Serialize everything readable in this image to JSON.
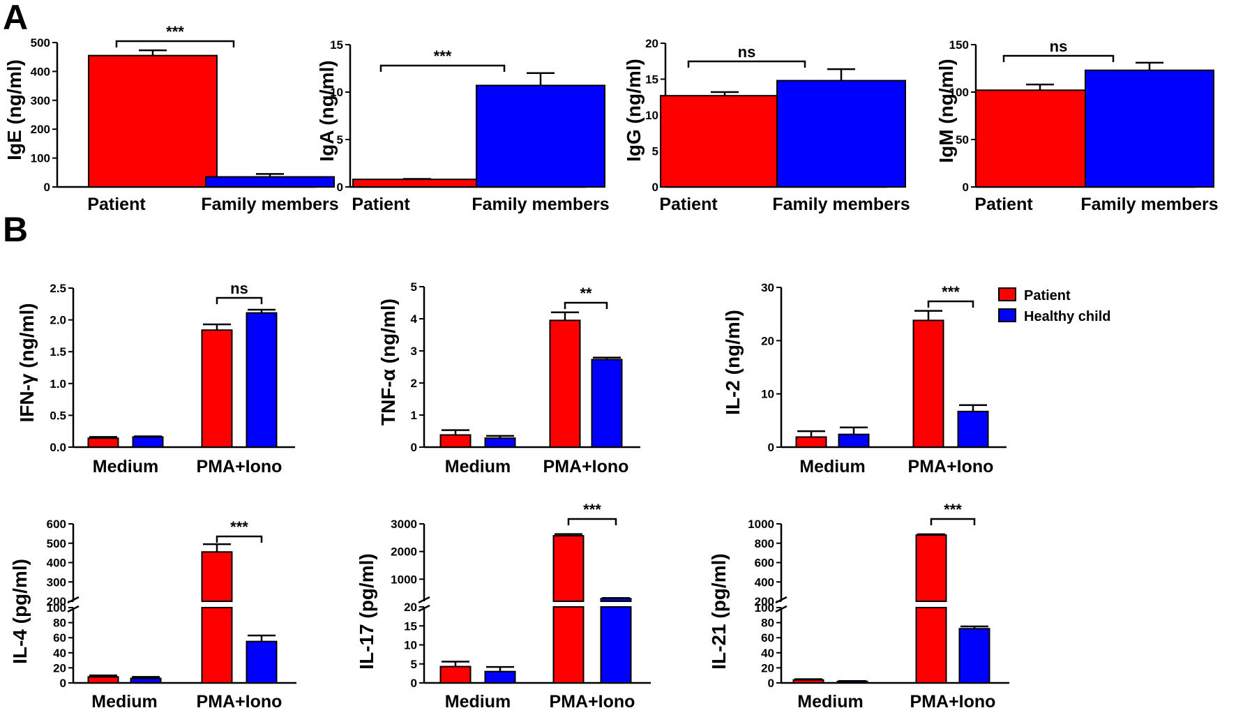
{
  "panel_labels": {
    "a": "A",
    "b": "B"
  },
  "legend": {
    "patient": "Patient",
    "healthy": "Healthy child"
  },
  "colors": {
    "red": "#ff0000",
    "blue": "#0000ff",
    "axis": "#000000"
  },
  "chart_data": [
    {
      "id": "IgE",
      "type": "bar",
      "ylabel": "IgE (ng/ml)",
      "categories": [
        "Patient",
        "Family members"
      ],
      "values": [
        455,
        35
      ],
      "errors": [
        18,
        10
      ],
      "ylim": [
        0,
        500
      ],
      "yticks": [
        0,
        100,
        200,
        300,
        400,
        500
      ],
      "significance": "***",
      "sig_between": [
        0,
        1
      ]
    },
    {
      "id": "IgA",
      "type": "bar",
      "ylabel": "IgA (ng/ml)",
      "categories": [
        "Patient",
        "Family members"
      ],
      "values": [
        0.8,
        10.7
      ],
      "errors": [
        0.05,
        1.3
      ],
      "ylim": [
        0,
        15
      ],
      "yticks": [
        0,
        5,
        10,
        15
      ],
      "significance": "***",
      "sig_between": [
        0,
        1
      ]
    },
    {
      "id": "IgG",
      "type": "bar",
      "ylabel": "IgG (ng/ml)",
      "categories": [
        "Patient",
        "Family members"
      ],
      "values": [
        12.7,
        14.8
      ],
      "errors": [
        0.5,
        1.6
      ],
      "ylim": [
        0,
        20
      ],
      "yticks": [
        0,
        5,
        10,
        15,
        20
      ],
      "significance": "ns",
      "sig_between": [
        0,
        1
      ]
    },
    {
      "id": "IgM",
      "type": "bar",
      "ylabel": "IgM (ng/ml)",
      "categories": [
        "Patient",
        "Family members"
      ],
      "values": [
        102,
        123
      ],
      "errors": [
        6,
        8
      ],
      "ylim": [
        0,
        150
      ],
      "yticks": [
        0,
        50,
        100,
        150
      ],
      "significance": "ns",
      "sig_between": [
        0,
        1
      ]
    },
    {
      "id": "IFN",
      "type": "bar",
      "ylabel": "IFN-γ (ng/ml)",
      "categories": [
        "Medium",
        "PMA+Iono"
      ],
      "series": [
        {
          "name": "Patient",
          "values": [
            0.14,
            1.84
          ],
          "errors": [
            0.02,
            0.09
          ]
        },
        {
          "name": "Healthy child",
          "values": [
            0.16,
            2.11
          ],
          "errors": [
            0.01,
            0.05
          ]
        }
      ],
      "ylim": [
        0,
        2.5
      ],
      "yticks": [
        "0.0",
        "0.5",
        "1.0",
        "1.5",
        "2.0",
        "2.5"
      ],
      "significance": "ns"
    },
    {
      "id": "TNF",
      "type": "bar",
      "ylabel": "TNF-α (ng/ml)",
      "categories": [
        "Medium",
        "PMA+Iono"
      ],
      "series": [
        {
          "name": "Patient",
          "values": [
            0.38,
            3.95
          ],
          "errors": [
            0.15,
            0.25
          ]
        },
        {
          "name": "Healthy child",
          "values": [
            0.28,
            2.73
          ],
          "errors": [
            0.07,
            0.06
          ]
        }
      ],
      "ylim": [
        0,
        5
      ],
      "yticks": [
        0,
        1,
        2,
        3,
        4,
        5
      ],
      "significance": "**"
    },
    {
      "id": "IL2",
      "type": "bar",
      "ylabel": "IL-2 (ng/ml)",
      "categories": [
        "Medium",
        "PMA+Iono"
      ],
      "series": [
        {
          "name": "Patient",
          "values": [
            1.9,
            23.8
          ],
          "errors": [
            1.1,
            1.8
          ]
        },
        {
          "name": "Healthy child",
          "values": [
            2.4,
            6.7
          ],
          "errors": [
            1.3,
            1.2
          ]
        }
      ],
      "ylim": [
        0,
        30
      ],
      "yticks": [
        0,
        10,
        20,
        30
      ],
      "significance": "***"
    },
    {
      "id": "IL4",
      "type": "bar",
      "ylabel": "IL-4 (pg/ml)",
      "categories": [
        "Medium",
        "PMA+Iono"
      ],
      "series": [
        {
          "name": "Patient",
          "values": [
            8,
            455
          ],
          "errors": [
            2,
            40
          ]
        },
        {
          "name": "Healthy child",
          "values": [
            6,
            55
          ],
          "errors": [
            2,
            8
          ]
        }
      ],
      "broken_axis": {
        "low": [
          0,
          100
        ],
        "high": [
          200,
          600
        ]
      },
      "yticks_low": [
        0,
        20,
        40,
        60,
        80,
        100
      ],
      "yticks_high": [
        200,
        300,
        400,
        500,
        600
      ],
      "significance": "***"
    },
    {
      "id": "IL17",
      "type": "bar",
      "ylabel": "IL-17 (pg/ml)",
      "categories": [
        "Medium",
        "PMA+Iono"
      ],
      "series": [
        {
          "name": "Patient",
          "values": [
            4.3,
            2570
          ],
          "errors": [
            1.3,
            60
          ]
        },
        {
          "name": "Healthy child",
          "values": [
            3.0,
            300
          ],
          "errors": [
            1.2,
            20
          ]
        }
      ],
      "broken_axis": {
        "low": [
          0,
          20
        ],
        "high": [
          200,
          3000
        ]
      },
      "yticks_low": [
        0,
        5,
        10,
        15,
        20
      ],
      "yticks_high": [
        1000,
        2000,
        3000
      ],
      "significance": "***"
    },
    {
      "id": "IL21",
      "type": "bar",
      "ylabel": "IL-21 (pg/ml)",
      "categories": [
        "Medium",
        "PMA+Iono"
      ],
      "series": [
        {
          "name": "Patient",
          "values": [
            4,
            885
          ],
          "errors": [
            1,
            8
          ]
        },
        {
          "name": "Healthy child",
          "values": [
            2,
            72
          ],
          "errors": [
            0.5,
            3
          ]
        }
      ],
      "broken_axis": {
        "low": [
          0,
          100
        ],
        "high": [
          200,
          1000
        ]
      },
      "yticks_low": [
        0,
        20,
        40,
        60,
        80,
        100
      ],
      "yticks_high": [
        200,
        400,
        600,
        800,
        1000
      ],
      "significance": "***"
    }
  ]
}
